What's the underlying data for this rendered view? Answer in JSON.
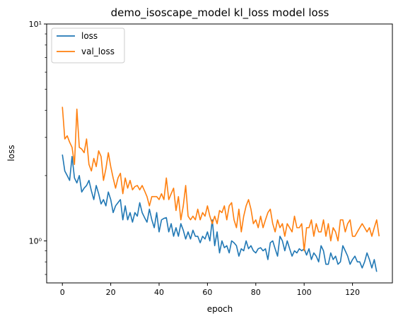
{
  "chart_data": {
    "type": "line",
    "title": "demo_isoscape_model kl_loss model loss",
    "xlabel": "epoch",
    "ylabel": "loss",
    "yscale": "log",
    "xlim": [
      -6.5,
      136.5
    ],
    "ylim": [
      0.64,
      10
    ],
    "xticks": [
      0,
      20,
      40,
      60,
      80,
      100,
      120
    ],
    "xtick_labels": [
      "0",
      "20",
      "40",
      "60",
      "80",
      "100",
      "120"
    ],
    "yticks": [
      1,
      10
    ],
    "ytick_labels": [
      "10⁰",
      "10¹"
    ],
    "grid": false,
    "legend_position": "upper-left",
    "series": [
      {
        "name": "loss",
        "color": "#1f77b4",
        "values": [
          2.5,
          2.1,
          2.0,
          1.9,
          2.45,
          1.95,
          1.85,
          2.0,
          1.68,
          1.75,
          1.8,
          1.9,
          1.7,
          1.55,
          1.8,
          1.65,
          1.48,
          1.55,
          1.45,
          1.68,
          1.55,
          1.35,
          1.45,
          1.5,
          1.55,
          1.25,
          1.45,
          1.25,
          1.35,
          1.22,
          1.35,
          1.3,
          1.5,
          1.35,
          1.28,
          1.22,
          1.4,
          1.25,
          1.15,
          1.35,
          1.1,
          1.25,
          1.27,
          1.28,
          1.1,
          1.2,
          1.05,
          1.15,
          1.05,
          1.2,
          1.12,
          1.02,
          1.1,
          1.02,
          1.12,
          1.05,
          1.05,
          0.98,
          1.05,
          1.02,
          1.1,
          1.0,
          1.25,
          0.95,
          1.1,
          0.88,
          1.0,
          0.93,
          0.95,
          0.88,
          1.0,
          0.98,
          0.95,
          0.85,
          0.92,
          0.9,
          1.0,
          0.92,
          0.95,
          0.9,
          0.88,
          0.92,
          0.93,
          0.9,
          0.92,
          0.82,
          0.98,
          1.0,
          0.92,
          0.85,
          1.05,
          1.0,
          0.9,
          1.0,
          0.92,
          0.85,
          0.9,
          0.88,
          0.92,
          0.9,
          0.92,
          0.86,
          0.92,
          0.82,
          0.88,
          0.85,
          0.8,
          0.95,
          0.9,
          0.78,
          0.78,
          0.88,
          0.82,
          0.85,
          0.78,
          0.8,
          0.95,
          0.9,
          0.85,
          0.78,
          0.82,
          0.85,
          0.8,
          0.8,
          0.75,
          0.8,
          0.88,
          0.82,
          0.75,
          0.82,
          0.72
        ]
      },
      {
        "name": "val_loss",
        "color": "#ff7f0e",
        "values": [
          4.15,
          2.95,
          3.05,
          2.85,
          2.7,
          2.25,
          4.05,
          2.7,
          2.65,
          2.55,
          2.95,
          2.25,
          2.1,
          2.4,
          2.2,
          2.6,
          2.45,
          1.9,
          2.15,
          2.55,
          2.2,
          1.95,
          1.75,
          1.95,
          2.05,
          1.65,
          1.95,
          1.75,
          1.9,
          1.72,
          1.78,
          1.8,
          1.72,
          1.8,
          1.7,
          1.6,
          1.45,
          1.6,
          1.6,
          1.6,
          1.55,
          1.65,
          1.55,
          1.95,
          1.55,
          1.65,
          1.75,
          1.38,
          1.6,
          1.25,
          1.45,
          1.8,
          1.3,
          1.25,
          1.3,
          1.25,
          1.4,
          1.25,
          1.35,
          1.3,
          1.45,
          1.3,
          1.2,
          1.3,
          1.2,
          1.38,
          1.35,
          1.45,
          1.25,
          1.45,
          1.5,
          1.25,
          1.15,
          1.4,
          1.1,
          1.3,
          1.45,
          1.55,
          1.4,
          1.2,
          1.25,
          1.15,
          1.3,
          1.15,
          1.25,
          1.35,
          1.4,
          1.2,
          1.1,
          1.25,
          1.15,
          1.2,
          1.05,
          1.2,
          1.15,
          1.1,
          1.3,
          1.15,
          1.15,
          1.2,
          0.9,
          1.15,
          1.15,
          1.25,
          1.05,
          1.2,
          1.1,
          1.1,
          1.25,
          1.05,
          1.2,
          1.0,
          1.15,
          1.1,
          1.0,
          1.25,
          1.25,
          1.1,
          1.2,
          1.25,
          1.05,
          1.05,
          1.1,
          1.15,
          1.2,
          1.15,
          1.1,
          1.15,
          1.05,
          1.15,
          1.25,
          1.05
        ]
      }
    ]
  }
}
